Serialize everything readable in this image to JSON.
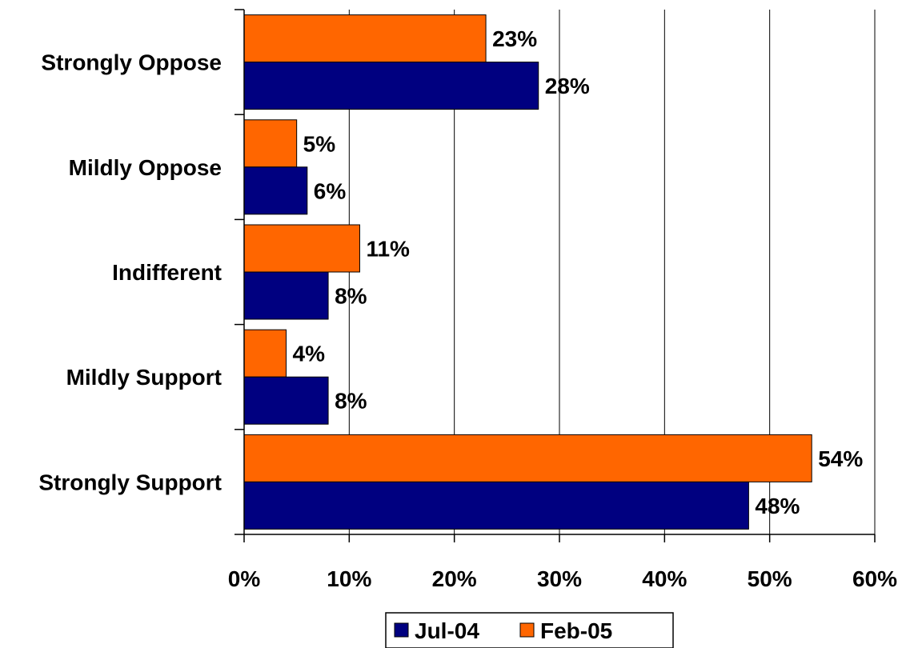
{
  "chart_data": {
    "type": "bar",
    "orientation": "horizontal",
    "categories": [
      "Strongly Oppose",
      "Mildly Oppose",
      "Indifferent",
      "Mildly Support",
      "Strongly Support"
    ],
    "series": [
      {
        "name": "Jul-04",
        "color": "#000080",
        "values": [
          28,
          6,
          8,
          8,
          48
        ],
        "labels": [
          "28%",
          "6%",
          "8%",
          "8%",
          "48%"
        ]
      },
      {
        "name": "Feb-05",
        "color": "#FF6600",
        "values": [
          23,
          5,
          11,
          4,
          54
        ],
        "labels": [
          "23%",
          "5%",
          "11%",
          "4%",
          "54%"
        ]
      }
    ],
    "xlim": [
      0,
      60
    ],
    "xticks": [
      0,
      10,
      20,
      30,
      40,
      50,
      60
    ],
    "xtick_labels": [
      "0%",
      "10%",
      "20%",
      "30%",
      "40%",
      "50%",
      "60%"
    ],
    "grid": "vertical",
    "legend_position": "bottom"
  }
}
